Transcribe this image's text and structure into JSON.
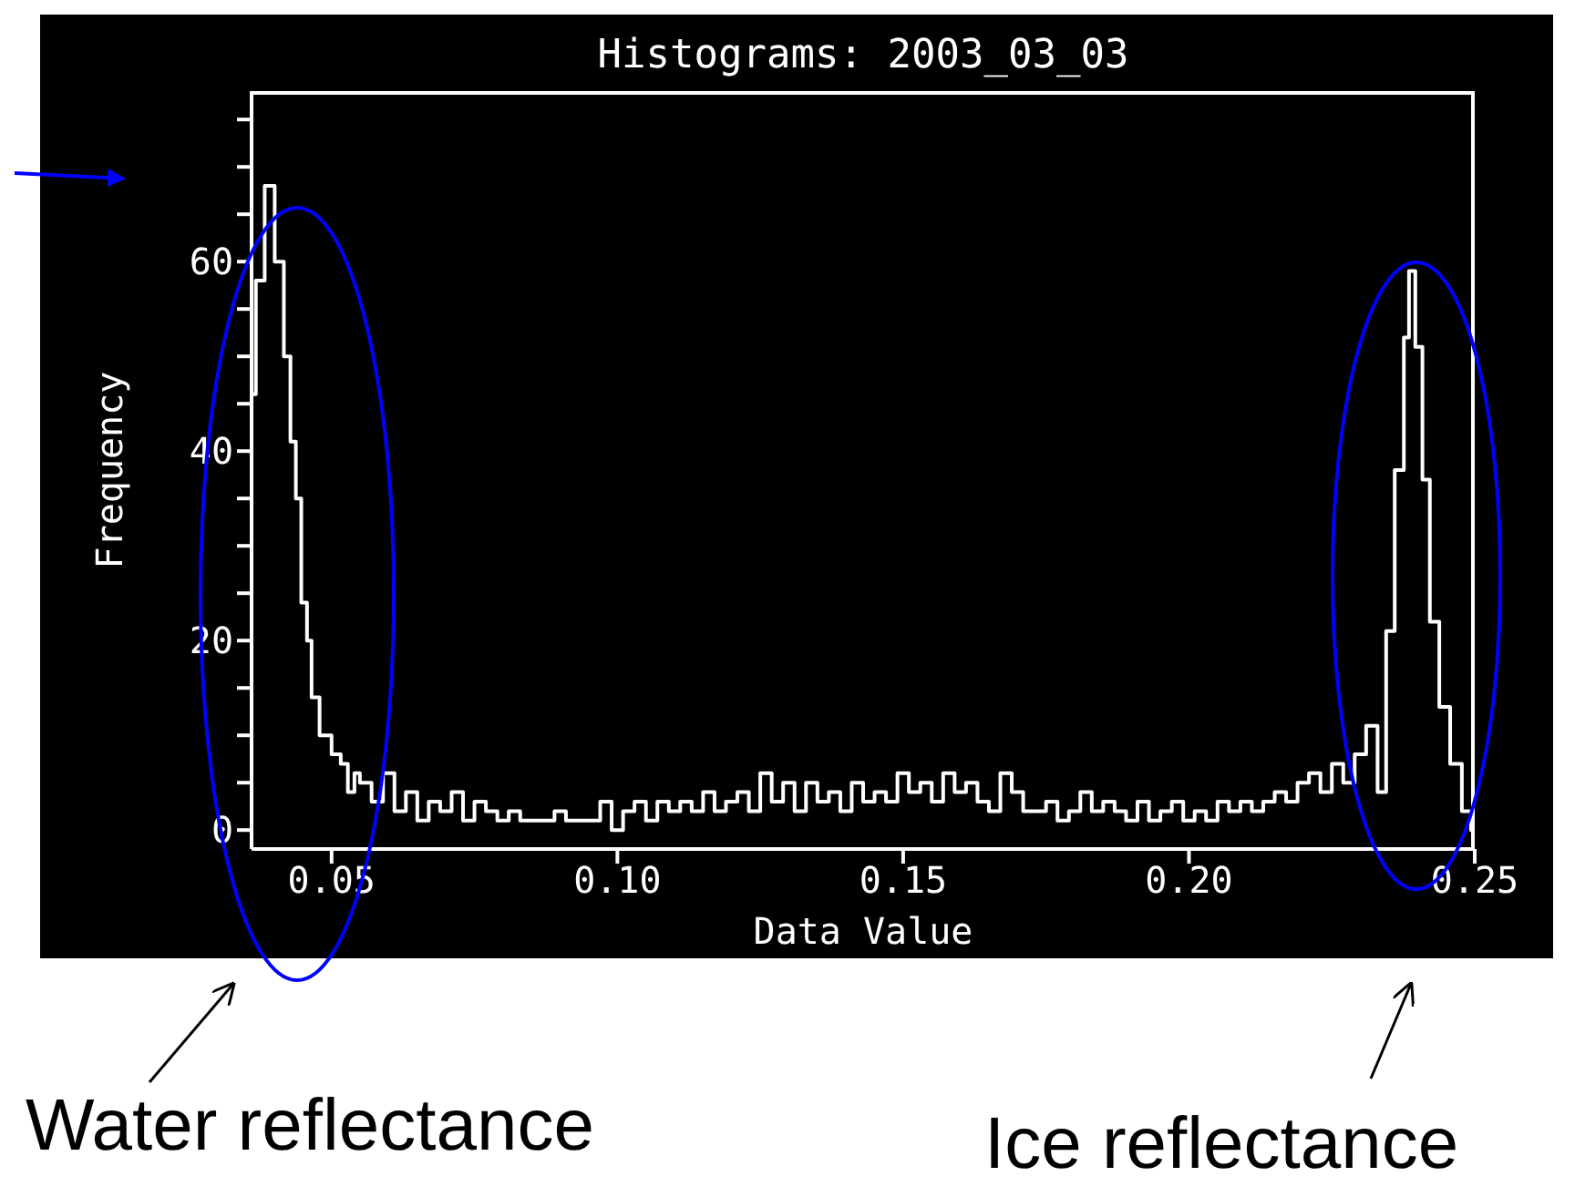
{
  "chart_data": {
    "type": "step",
    "title": "Histograms: 2003_03_03",
    "xlabel": "Data Value",
    "ylabel": "Frequency",
    "annotations": [
      "Water reflectance",
      "Ice reflectance"
    ],
    "xlim": [
      0.036,
      0.25
    ],
    "xticks": [
      0.05,
      {
        "value": 0.1,
        "label": "0.10"
      },
      0.15,
      {
        "value": 0.2,
        "label": "0.20"
      },
      0.25
    ],
    "ylim": [
      -2,
      78
    ],
    "yticks": [
      0,
      {
        "value": 5,
        "label": null
      },
      {
        "value": 10,
        "label": null
      },
      {
        "value": 15,
        "label": null
      },
      20,
      {
        "value": 25,
        "label": null
      },
      {
        "value": 30,
        "label": null
      },
      {
        "value": 35,
        "label": null
      },
      40,
      {
        "value": 45,
        "label": null
      },
      {
        "value": 50,
        "label": null
      },
      {
        "value": 55,
        "label": null
      },
      60,
      {
        "value": 65,
        "label": null
      },
      {
        "value": 70,
        "label": null
      },
      {
        "value": 75,
        "label": null
      }
    ],
    "series": [
      {
        "color": "#ffffff",
        "x": [
          0.036,
          0.0375,
          0.0391,
          0.041,
          0.0423,
          0.0433,
          0.0442,
          0.0452,
          0.0462,
          0.0468,
          0.049,
          0.051,
          0.0522,
          0.0535,
          0.0545,
          0.0554,
          0.056,
          0.058,
          0.06,
          0.062,
          0.064,
          0.066,
          0.068,
          0.07,
          0.072,
          0.074,
          0.076,
          0.078,
          0.08,
          0.082,
          0.084,
          0.086,
          0.088,
          0.09,
          0.092,
          0.094,
          0.096,
          0.098,
          0.1,
          0.102,
          0.104,
          0.106,
          0.108,
          0.11,
          0.112,
          0.114,
          0.116,
          0.118,
          0.12,
          0.122,
          0.124,
          0.126,
          0.128,
          0.13,
          0.132,
          0.134,
          0.136,
          0.138,
          0.14,
          0.142,
          0.144,
          0.146,
          0.148,
          0.15,
          0.152,
          0.154,
          0.156,
          0.158,
          0.16,
          0.162,
          0.164,
          0.166,
          0.168,
          0.17,
          0.172,
          0.174,
          0.176,
          0.178,
          0.18,
          0.182,
          0.184,
          0.186,
          0.188,
          0.19,
          0.192,
          0.194,
          0.196,
          0.198,
          0.2,
          0.202,
          0.204,
          0.206,
          0.208,
          0.21,
          0.212,
          0.214,
          0.216,
          0.218,
          0.22,
          0.222,
          0.224,
          0.226,
          0.228,
          0.23,
          0.232,
          0.234,
          0.235,
          0.237,
          0.2382,
          0.2388,
          0.2404,
          0.2413,
          0.243,
          0.2446,
          0.2468,
          0.2487,
          0.25
        ],
        "values": [
          46,
          58,
          68,
          60,
          50,
          41,
          35,
          24,
          20,
          14,
          10,
          8,
          7,
          4,
          6,
          5,
          5,
          3,
          6,
          2,
          4,
          1,
          3,
          2,
          4,
          1,
          3,
          2,
          1,
          2,
          1,
          1,
          1,
          2,
          1,
          1,
          1,
          3,
          0,
          2,
          3,
          1,
          3,
          2,
          3,
          2,
          4,
          2,
          3,
          4,
          2,
          6,
          3,
          5,
          2,
          5,
          3,
          4,
          2,
          5,
          3,
          4,
          3,
          6,
          4,
          5,
          3,
          6,
          4,
          5,
          3,
          2,
          6,
          4,
          2,
          2,
          3,
          1,
          2,
          4,
          2,
          3,
          2,
          1,
          3,
          1,
          2,
          3,
          1,
          2,
          1,
          3,
          2,
          3,
          2,
          3,
          4,
          3,
          5,
          6,
          4,
          7,
          5,
          8,
          11,
          4,
          21,
          38,
          52,
          59,
          51,
          37,
          22,
          13,
          7,
          2,
          0
        ]
      }
    ]
  }
}
